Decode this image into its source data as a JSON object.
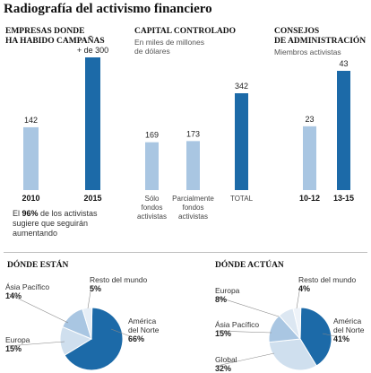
{
  "title": "Radiografía del activismo financiero",
  "note_bold": "96%",
  "note_prefix": "El ",
  "note_rest": " de los activistas sugiere que seguirán aumentando",
  "chart_data": [
    {
      "type": "bar",
      "title_lines": [
        "EMPRESAS DONDE",
        "HA HABIDO CAMPAÑAS"
      ],
      "categories": [
        "2010",
        "2015"
      ],
      "values": [
        142,
        300
      ],
      "value_labels": [
        "142",
        "+ de 300"
      ],
      "colors": [
        "#a9c6e2",
        "#1c6aa8"
      ]
    },
    {
      "type": "bar",
      "title_lines": [
        "CAPITAL CONTROLADO"
      ],
      "subtitle_lines": [
        "En miles de millones",
        "de dólares"
      ],
      "categories": [
        [
          "Sólo",
          "fondos",
          "activistas"
        ],
        [
          "Parcialmente",
          "fondos",
          "activistas"
        ],
        [
          "TOTAL"
        ]
      ],
      "values": [
        169,
        173,
        342
      ],
      "value_labels": [
        "169",
        "173",
        "342"
      ],
      "colors": [
        "#a9c6e2",
        "#a9c6e2",
        "#1c6aa8"
      ]
    },
    {
      "type": "bar",
      "title_lines": [
        "CONSEJOS",
        "DE ADMINISTRACIÓN"
      ],
      "subtitle_lines": [
        "Miembros activistas"
      ],
      "categories": [
        "10-12",
        "13-15"
      ],
      "values": [
        23,
        43
      ],
      "value_labels": [
        "23",
        "43"
      ],
      "colors": [
        "#a9c6e2",
        "#1c6aa8"
      ]
    },
    {
      "type": "pie",
      "title": "DÓNDE ESTÁN",
      "slices": [
        {
          "label": [
            "América",
            "del Norte"
          ],
          "value": 66,
          "display": "66%",
          "color": "#1c6aa8"
        },
        {
          "label": [
            "Europa"
          ],
          "value": 15,
          "display": "15%",
          "color": "#cfdfee"
        },
        {
          "label": [
            "Ásia Pacífico"
          ],
          "value": 14,
          "display": "14%",
          "color": "#a9c6e2"
        },
        {
          "label": [
            "Resto del mundo"
          ],
          "value": 5,
          "display": "5%",
          "color": "#e6eef6"
        }
      ]
    },
    {
      "type": "pie",
      "title": "DÓNDE ACTÚAN",
      "slices": [
        {
          "label": [
            "América",
            "del Norte"
          ],
          "value": 41,
          "display": "41%",
          "color": "#1c6aa8"
        },
        {
          "label": [
            "Global"
          ],
          "value": 32,
          "display": "32%",
          "color": "#cfdfee"
        },
        {
          "label": [
            "Ásia Pacífico"
          ],
          "value": 15,
          "display": "15%",
          "color": "#a9c6e2"
        },
        {
          "label": [
            "Europa"
          ],
          "value": 8,
          "display": "8%",
          "color": "#dce7f2"
        },
        {
          "label": [
            "Resto del mundo"
          ],
          "value": 4,
          "display": "4%",
          "color": "#eef3f9"
        }
      ]
    }
  ]
}
